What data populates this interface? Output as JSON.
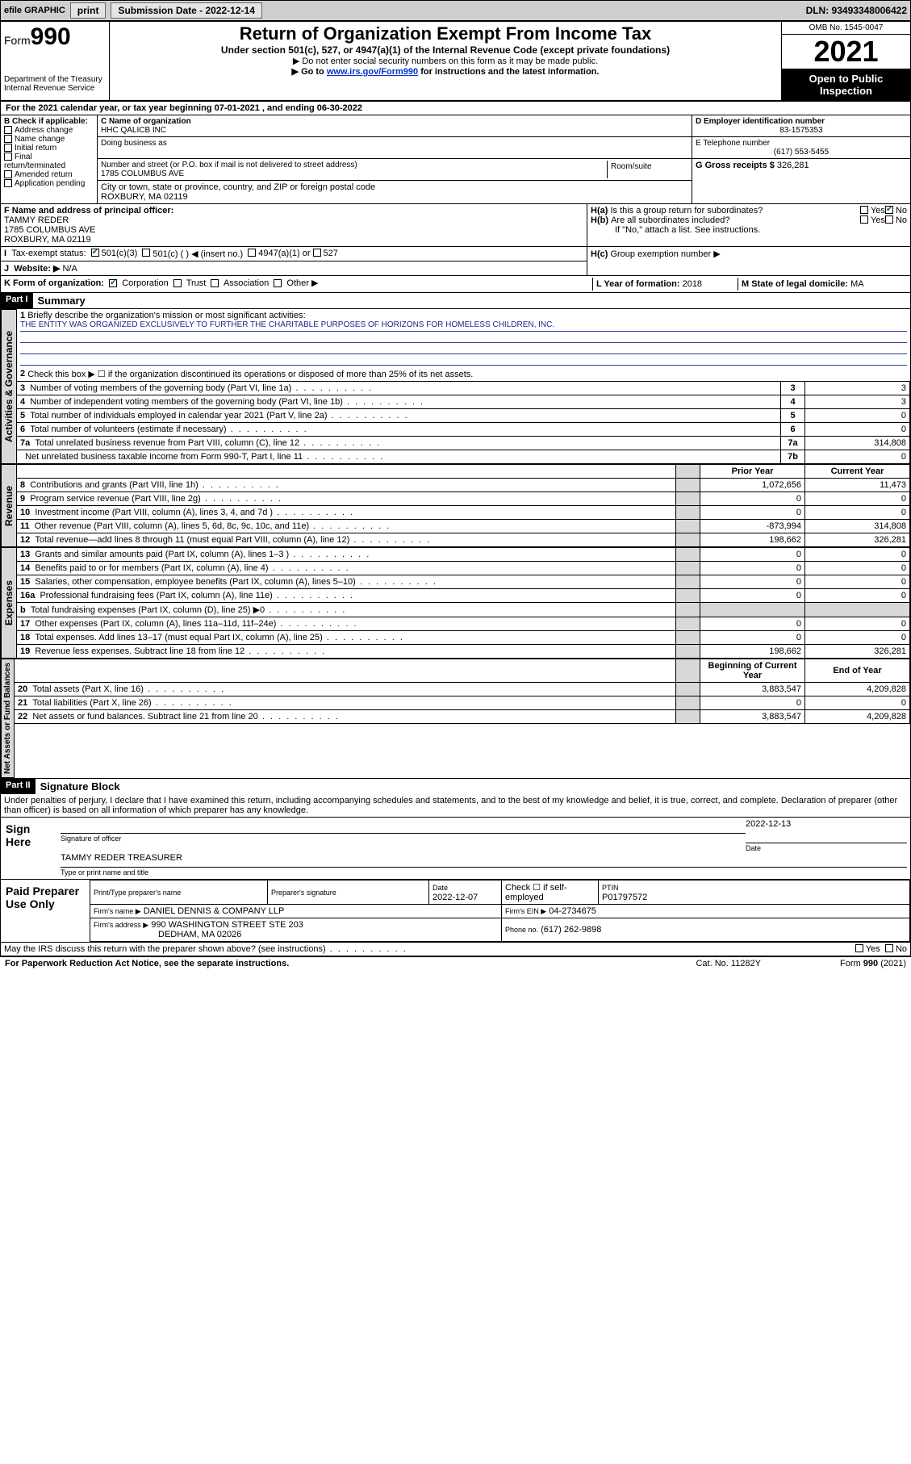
{
  "toolbar": {
    "efile": "efile GRAPHIC",
    "print": "print",
    "sub_label": "Submission Date - 2022-12-14",
    "dln": "DLN: 93493348006422"
  },
  "header": {
    "form_label": "Form",
    "form_num": "990",
    "dept": "Department of the Treasury",
    "irs": "Internal Revenue Service",
    "title": "Return of Organization Exempt From Income Tax",
    "sub": "Under section 501(c), 527, or 4947(a)(1) of the Internal Revenue Code (except private foundations)",
    "note1": "▶ Do not enter social security numbers on this form as it may be made public.",
    "note2_pre": "▶ Go to ",
    "note2_link": "www.irs.gov/Form990",
    "note2_post": " for instructions and the latest information.",
    "omb": "OMB No. 1545-0047",
    "year": "2021",
    "open": "Open to Public Inspection"
  },
  "calyr": "For the 2021 calendar year, or tax year beginning 07-01-2021   , and ending 06-30-2022",
  "boxB": {
    "label": "B Check if applicable:",
    "items": [
      "Address change",
      "Name change",
      "Initial return",
      "Final return/terminated",
      "Amended return",
      "Application pending"
    ]
  },
  "boxC": {
    "name_lbl": "C Name of organization",
    "name": "HHC QALICB INC",
    "dba_lbl": "Doing business as",
    "street_lbl": "Number and street (or P.O. box if mail is not delivered to street address)",
    "room_lbl": "Room/suite",
    "street": "1785 COLUMBUS AVE",
    "city_lbl": "City or town, state or province, country, and ZIP or foreign postal code",
    "city": "ROXBURY, MA  02119"
  },
  "boxD": {
    "lbl": "D Employer identification number",
    "val": "83-1575353"
  },
  "boxE": {
    "lbl": "E Telephone number",
    "val": "(617) 553-5455"
  },
  "boxG": {
    "lbl": "G Gross receipts $",
    "val": "326,281"
  },
  "boxF": {
    "lbl": "F  Name and address of principal officer:",
    "name": "TAMMY REDER",
    "addr1": "1785 COLUMBUS AVE",
    "addr2": "ROXBURY, MA  02119"
  },
  "boxH": {
    "a": "Is this a group return for subordinates?",
    "b": "Are all subordinates included?",
    "ifno": "If \"No,\" attach a list. See instructions.",
    "c": "Group exemption number ▶",
    "yes": "Yes",
    "no": "No"
  },
  "boxI": {
    "lbl": "Tax-exempt status:",
    "o1": "501(c)(3)",
    "o2": "501(c) (  ) ◀ (insert no.)",
    "o3": "4947(a)(1) or",
    "o4": "527"
  },
  "boxJ": {
    "lbl": "Website: ▶",
    "val": "N/A"
  },
  "boxK": {
    "lbl": "K Form of organization:",
    "opts": [
      "Corporation",
      "Trust",
      "Association",
      "Other ▶"
    ]
  },
  "boxL": {
    "lbl": "L Year of formation:",
    "val": "2018"
  },
  "boxM": {
    "lbl": "M State of legal domicile:",
    "val": "MA"
  },
  "part1": {
    "hd": "Part I",
    "title": "Summary",
    "tab_ag": "Activities & Governance",
    "tab_rev": "Revenue",
    "tab_exp": "Expenses",
    "tab_na": "Net Assets or Fund Balances",
    "l1": "Briefly describe the organization's mission or most significant activities:",
    "mission": "THE ENTITY WAS ORGANIZED EXCLUSIVELY TO FURTHER THE CHARITABLE PURPOSES OF HORIZONS FOR HOMELESS CHILDREN, INC.",
    "l2": "Check this box ▶ ☐  if the organization discontinued its operations or disposed of more than 25% of its net assets.",
    "rows_ag": [
      {
        "n": "3",
        "t": "Number of voting members of the governing body (Part VI, line 1a)",
        "c": "3",
        "v": "3"
      },
      {
        "n": "4",
        "t": "Number of independent voting members of the governing body (Part VI, line 1b)",
        "c": "4",
        "v": "3"
      },
      {
        "n": "5",
        "t": "Total number of individuals employed in calendar year 2021 (Part V, line 2a)",
        "c": "5",
        "v": "0"
      },
      {
        "n": "6",
        "t": "Total number of volunteers (estimate if necessary)",
        "c": "6",
        "v": "0"
      },
      {
        "n": "7a",
        "t": "Total unrelated business revenue from Part VIII, column (C), line 12",
        "c": "7a",
        "v": "314,808"
      },
      {
        "n": "",
        "t": "Net unrelated business taxable income from Form 990-T, Part I, line 11",
        "c": "7b",
        "v": "0"
      }
    ],
    "col_py": "Prior Year",
    "col_cy": "Current Year",
    "rows_rev": [
      {
        "n": "8",
        "t": "Contributions and grants (Part VIII, line 1h)",
        "p": "1,072,656",
        "c": "11,473"
      },
      {
        "n": "9",
        "t": "Program service revenue (Part VIII, line 2g)",
        "p": "0",
        "c": "0"
      },
      {
        "n": "10",
        "t": "Investment income (Part VIII, column (A), lines 3, 4, and 7d )",
        "p": "0",
        "c": "0"
      },
      {
        "n": "11",
        "t": "Other revenue (Part VIII, column (A), lines 5, 6d, 8c, 9c, 10c, and 11e)",
        "p": "-873,994",
        "c": "314,808"
      },
      {
        "n": "12",
        "t": "Total revenue—add lines 8 through 11 (must equal Part VIII, column (A), line 12)",
        "p": "198,662",
        "c": "326,281"
      }
    ],
    "rows_exp": [
      {
        "n": "13",
        "t": "Grants and similar amounts paid (Part IX, column (A), lines 1–3 )",
        "p": "0",
        "c": "0"
      },
      {
        "n": "14",
        "t": "Benefits paid to or for members (Part IX, column (A), line 4)",
        "p": "0",
        "c": "0"
      },
      {
        "n": "15",
        "t": "Salaries, other compensation, employee benefits (Part IX, column (A), lines 5–10)",
        "p": "0",
        "c": "0"
      },
      {
        "n": "16a",
        "t": "Professional fundraising fees (Part IX, column (A), line 11e)",
        "p": "0",
        "c": "0"
      },
      {
        "n": "b",
        "t": "Total fundraising expenses (Part IX, column (D), line 25) ▶0",
        "p": "",
        "c": "",
        "shade": true
      },
      {
        "n": "17",
        "t": "Other expenses (Part IX, column (A), lines 11a–11d, 11f–24e)",
        "p": "0",
        "c": "0"
      },
      {
        "n": "18",
        "t": "Total expenses. Add lines 13–17 (must equal Part IX, column (A), line 25)",
        "p": "0",
        "c": "0"
      },
      {
        "n": "19",
        "t": "Revenue less expenses. Subtract line 18 from line 12",
        "p": "198,662",
        "c": "326,281"
      }
    ],
    "col_boy": "Beginning of Current Year",
    "col_eoy": "End of Year",
    "rows_na": [
      {
        "n": "20",
        "t": "Total assets (Part X, line 16)",
        "p": "3,883,547",
        "c": "4,209,828"
      },
      {
        "n": "21",
        "t": "Total liabilities (Part X, line 26)",
        "p": "0",
        "c": "0"
      },
      {
        "n": "22",
        "t": "Net assets or fund balances. Subtract line 21 from line 20",
        "p": "3,883,547",
        "c": "4,209,828"
      }
    ]
  },
  "part2": {
    "hd": "Part II",
    "title": "Signature Block",
    "decl": "Under penalties of perjury, I declare that I have examined this return, including accompanying schedules and statements, and to the best of my knowledge and belief, it is true, correct, and complete. Declaration of preparer (other than officer) is based on all information of which preparer has any knowledge.",
    "sign_here": "Sign Here",
    "sig_off": "Signature of officer",
    "date_lbl": "Date",
    "sig_date": "2022-12-13",
    "officer": "TAMMY REDER  TREASURER",
    "officer_lbl": "Type or print name and title",
    "paid": "Paid Preparer Use Only",
    "prep_name_lbl": "Print/Type preparer's name",
    "prep_sig_lbl": "Preparer's signature",
    "prep_date_lbl": "Date",
    "prep_date": "2022-12-07",
    "check_self": "Check ☐ if self-employed",
    "ptin_lbl": "PTIN",
    "ptin": "P01797572",
    "firm_name_lbl": "Firm's name   ▶",
    "firm_name": "DANIEL DENNIS & COMPANY LLP",
    "firm_ein_lbl": "Firm's EIN ▶",
    "firm_ein": "04-2734675",
    "firm_addr_lbl": "Firm's address ▶",
    "firm_addr1": "990 WASHINGTON STREET STE 203",
    "firm_addr2": "DEDHAM, MA  02026",
    "phone_lbl": "Phone no.",
    "phone": "(617) 262-9898",
    "may_irs": "May the IRS discuss this return with the preparer shown above? (see instructions)"
  },
  "footer": {
    "pra": "For Paperwork Reduction Act Notice, see the separate instructions.",
    "cat": "Cat. No. 11282Y",
    "form": "Form 990 (2021)"
  }
}
